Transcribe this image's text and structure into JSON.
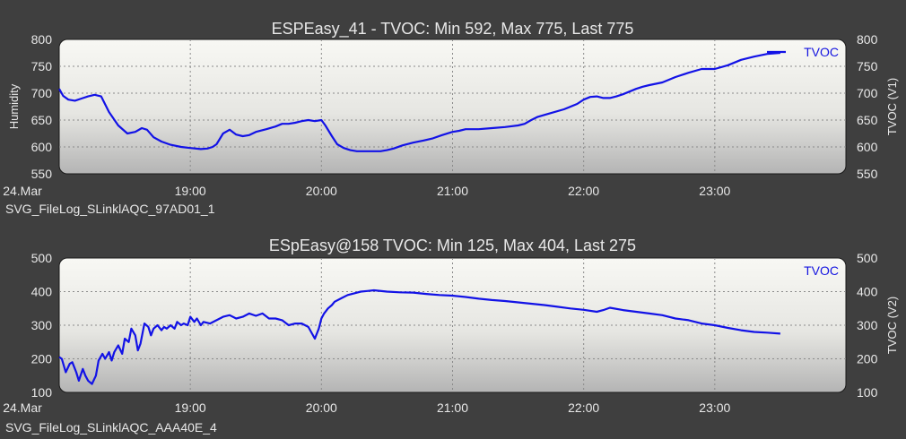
{
  "chart_data": [
    {
      "type": "line",
      "title": "ESPEasy_41 - TVOC: Min 592, Max 775, Last 775",
      "ylabel": "Humidity",
      "y2label": "TVOC (V1)",
      "ylim": [
        550,
        800
      ],
      "yticks": [
        550,
        600,
        650,
        700,
        750,
        800
      ],
      "xlim": [
        18.0,
        24.0
      ],
      "xticks": [
        {
          "v": 18.0,
          "label": "24.Mar"
        },
        {
          "v": 19.0,
          "label": "19:00"
        },
        {
          "v": 20.0,
          "label": "20:00"
        },
        {
          "v": 21.0,
          "label": "21:00"
        },
        {
          "v": 22.0,
          "label": "22:00"
        },
        {
          "v": 23.0,
          "label": "23:00"
        }
      ],
      "grid": true,
      "legend_position": "top-right",
      "source": "SVG_FileLog_SLinklAQC_97AD01_1",
      "series": [
        {
          "name": "TVOC",
          "color": "#1212e6",
          "x": [
            18.0,
            18.03,
            18.07,
            18.12,
            18.17,
            18.22,
            18.27,
            18.32,
            18.38,
            18.45,
            18.52,
            18.58,
            18.63,
            18.67,
            18.72,
            18.78,
            18.85,
            18.93,
            19.0,
            19.08,
            19.13,
            19.17,
            19.2,
            19.25,
            19.3,
            19.35,
            19.4,
            19.45,
            19.5,
            19.58,
            19.65,
            19.7,
            19.75,
            19.8,
            19.85,
            19.9,
            19.95,
            20.0,
            20.03,
            20.08,
            20.12,
            20.17,
            20.22,
            20.27,
            20.32,
            20.38,
            20.45,
            20.5,
            20.55,
            20.62,
            20.7,
            20.78,
            20.85,
            20.92,
            21.0,
            21.05,
            21.1,
            21.15,
            21.2,
            21.3,
            21.4,
            21.5,
            21.55,
            21.6,
            21.65,
            21.75,
            21.85,
            21.95,
            22.0,
            22.05,
            22.1,
            22.15,
            22.2,
            22.25,
            22.3,
            22.35,
            22.4,
            22.45,
            22.5,
            22.6,
            22.7,
            22.8,
            22.9,
            23.0,
            23.1,
            23.2,
            23.3,
            23.4,
            23.5
          ],
          "values": [
            708,
            695,
            688,
            686,
            690,
            694,
            697,
            694,
            665,
            640,
            625,
            628,
            635,
            632,
            618,
            610,
            604,
            600,
            598,
            596,
            597,
            600,
            605,
            625,
            632,
            623,
            620,
            622,
            628,
            633,
            638,
            643,
            643,
            645,
            648,
            650,
            648,
            650,
            640,
            620,
            605,
            598,
            594,
            592,
            592,
            592,
            592,
            594,
            597,
            603,
            608,
            612,
            616,
            622,
            628,
            630,
            633,
            633,
            633,
            635,
            637,
            640,
            643,
            650,
            656,
            663,
            670,
            680,
            688,
            693,
            694,
            691,
            691,
            694,
            698,
            703,
            708,
            712,
            715,
            720,
            730,
            738,
            745,
            745,
            752,
            762,
            768,
            773,
            775
          ]
        }
      ]
    },
    {
      "type": "line",
      "title": "ESpEasy@158 TVOC: Min 125, Max 404, Last 275",
      "ylabel": "",
      "y2label": "TVOC (V2)",
      "ylim": [
        100,
        500
      ],
      "yticks": [
        100,
        200,
        300,
        400,
        500
      ],
      "xlim": [
        18.0,
        24.0
      ],
      "xticks": [
        {
          "v": 18.0,
          "label": "24.Mar"
        },
        {
          "v": 19.0,
          "label": "19:00"
        },
        {
          "v": 20.0,
          "label": "20:00"
        },
        {
          "v": 21.0,
          "label": "21:00"
        },
        {
          "v": 22.0,
          "label": "22:00"
        },
        {
          "v": 23.0,
          "label": "23:00"
        }
      ],
      "grid": true,
      "legend_position": "top-right",
      "source": "SVG_FileLog_SLinklAQC_AAA40E_4",
      "series": [
        {
          "name": "TVOC",
          "color": "#1212e6",
          "x": [
            18.0,
            18.02,
            18.05,
            18.08,
            18.1,
            18.13,
            18.15,
            18.18,
            18.2,
            18.22,
            18.25,
            18.28,
            18.3,
            18.33,
            18.35,
            18.38,
            18.4,
            18.42,
            18.45,
            18.48,
            18.5,
            18.53,
            18.55,
            18.58,
            18.6,
            18.62,
            18.65,
            18.68,
            18.7,
            18.72,
            18.75,
            18.78,
            18.8,
            18.82,
            18.85,
            18.88,
            18.9,
            18.93,
            18.95,
            18.98,
            19.0,
            19.03,
            19.05,
            19.08,
            19.1,
            19.15,
            19.2,
            19.25,
            19.3,
            19.35,
            19.4,
            19.45,
            19.5,
            19.55,
            19.6,
            19.65,
            19.7,
            19.75,
            19.8,
            19.85,
            19.9,
            19.95,
            19.98,
            20.0,
            20.02,
            20.05,
            20.08,
            20.1,
            20.15,
            20.2,
            20.25,
            20.3,
            20.35,
            20.4,
            20.5,
            20.6,
            20.7,
            20.8,
            20.9,
            21.0,
            21.1,
            21.2,
            21.3,
            21.4,
            21.5,
            21.6,
            21.7,
            21.8,
            21.9,
            22.0,
            22.1,
            22.15,
            22.2,
            22.3,
            22.4,
            22.5,
            22.6,
            22.7,
            22.8,
            22.9,
            23.0,
            23.1,
            23.2,
            23.3,
            23.4,
            23.5
          ],
          "values": [
            205,
            200,
            160,
            185,
            190,
            160,
            135,
            170,
            150,
            135,
            125,
            150,
            195,
            215,
            200,
            220,
            195,
            220,
            240,
            215,
            260,
            250,
            290,
            270,
            225,
            245,
            305,
            295,
            270,
            290,
            300,
            285,
            295,
            290,
            300,
            290,
            310,
            300,
            305,
            300,
            325,
            310,
            320,
            300,
            310,
            305,
            315,
            325,
            330,
            320,
            325,
            335,
            328,
            335,
            320,
            320,
            315,
            300,
            305,
            305,
            295,
            260,
            290,
            320,
            335,
            350,
            360,
            370,
            380,
            390,
            395,
            400,
            402,
            404,
            400,
            398,
            397,
            393,
            390,
            388,
            384,
            379,
            375,
            372,
            368,
            364,
            360,
            355,
            350,
            346,
            340,
            345,
            352,
            345,
            340,
            335,
            330,
            320,
            315,
            305,
            300,
            292,
            285,
            280,
            278,
            275
          ]
        }
      ]
    }
  ]
}
